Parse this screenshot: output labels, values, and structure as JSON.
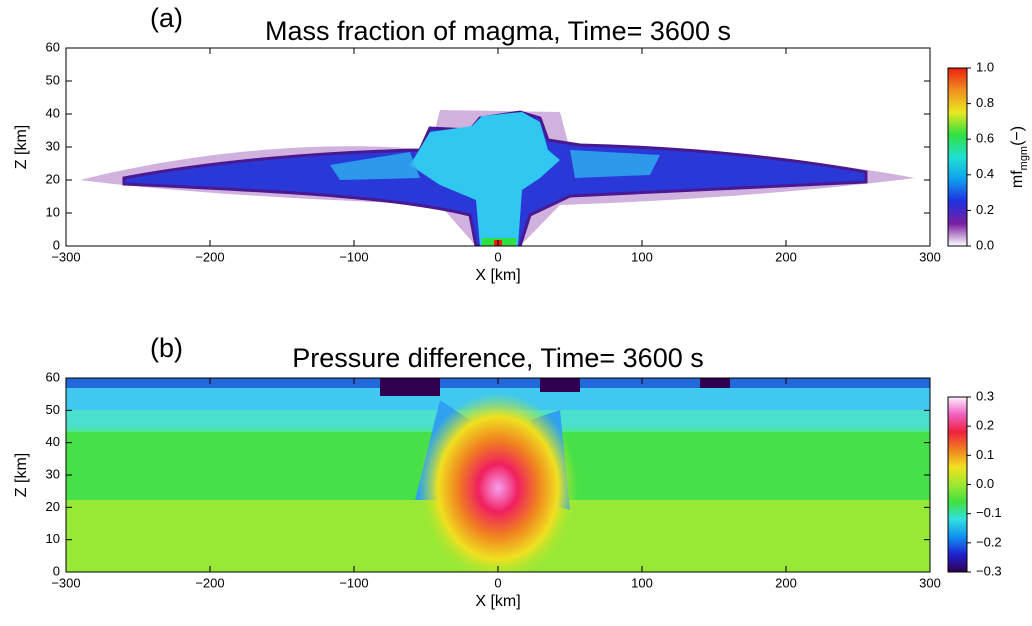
{
  "chart_data": [
    {
      "type": "heatmap",
      "panel_label": "(a)",
      "title": "Mass fraction of magma, Time=   3600 s",
      "xlabel": "X [km]",
      "ylabel": "Z [km]",
      "xlim": [
        -300,
        300
      ],
      "xticks": [
        {
          "value": -300,
          "label": "−300"
        },
        {
          "value": -200,
          "label": "−200"
        },
        {
          "value": -100,
          "label": "−100"
        },
        0,
        100,
        200,
        300
      ],
      "ylim": [
        0,
        60
      ],
      "yticks": [
        0,
        10,
        20,
        30,
        40,
        50,
        60
      ],
      "colorbar": {
        "label": {
          "main": "mf",
          "sub": "mgm",
          "unit": "(−)"
        },
        "lim": [
          0,
          1
        ],
        "ticks": [
          {
            "value": 0,
            "label": "0.0"
          },
          {
            "value": 0.2,
            "label": "0.2"
          },
          {
            "value": 0.4,
            "label": "0.4"
          },
          {
            "value": 0.6,
            "label": "0.6"
          },
          {
            "value": 0.8,
            "label": "0.8"
          },
          {
            "value": 1,
            "label": "1.0"
          }
        ],
        "colors": [
          "#ffffff",
          "#7a1fa0",
          "#2030e0",
          "#10a0f0",
          "#20e0d0",
          "#30e040",
          "#e8e820",
          "#f09020",
          "#e82010"
        ]
      }
    },
    {
      "type": "heatmap",
      "panel_label": "(b)",
      "title": "Pressure difference, Time=   3600 s",
      "xlabel": "X [km]",
      "ylabel": "Z [km]",
      "xlim": [
        -300,
        300
      ],
      "xticks": [
        {
          "value": -300,
          "label": "−300"
        },
        {
          "value": -200,
          "label": "−200"
        },
        {
          "value": -100,
          "label": "−100"
        },
        0,
        100,
        200,
        300
      ],
      "ylim": [
        0,
        60
      ],
      "yticks": [
        0,
        10,
        20,
        30,
        40,
        50,
        60
      ],
      "colorbar": {
        "lim": [
          -0.3,
          0.3
        ],
        "ticks": [
          {
            "value": -0.3,
            "label": "−0.3"
          },
          {
            "value": -0.2,
            "label": "−0.2"
          },
          {
            "value": -0.1,
            "label": "−0.1"
          },
          {
            "value": 0,
            "label": "0.0"
          },
          {
            "value": 0.1,
            "label": "0.1"
          },
          {
            "value": 0.2,
            "label": "0.2"
          },
          {
            "value": 0.3,
            "label": "0.3"
          }
        ],
        "colors": [
          "#300050",
          "#2020d0",
          "#1090f0",
          "#30e0e0",
          "#40e040",
          "#a0e830",
          "#f0e020",
          "#f08020",
          "#f02040",
          "#f060c0",
          "#fff0ff"
        ]
      }
    }
  ]
}
